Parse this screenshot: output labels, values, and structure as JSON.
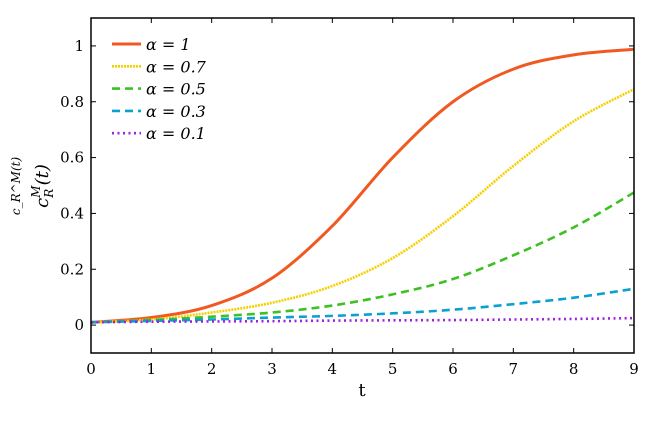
{
  "chart_data": {
    "type": "line",
    "xlabel": "t",
    "ylabel": "c_R^M(t)",
    "ylabel_parts": {
      "base": "c",
      "sub": "R",
      "sup": "M",
      "arg": "(t)"
    },
    "xlim": [
      0,
      9
    ],
    "ylim": [
      -0.1,
      1.1
    ],
    "xticks": [
      "0",
      "1",
      "2",
      "3",
      "4",
      "5",
      "6",
      "7",
      "8",
      "9"
    ],
    "yticks": [
      "0",
      "0.2",
      "0.4",
      "0.6",
      "0.8",
      "1"
    ],
    "grid": false,
    "legend_position": "top-left",
    "x": [
      0,
      1,
      2,
      3,
      4,
      5,
      6,
      7,
      8,
      9
    ],
    "series": [
      {
        "name": "α = 1",
        "color": "#f05a22",
        "style": "solid",
        "values": [
          0.01,
          0.027,
          0.07,
          0.168,
          0.355,
          0.6,
          0.8,
          0.917,
          0.968,
          0.988
        ]
      },
      {
        "name": "α = 0.7",
        "color": "#f5d000",
        "style": "dotted-dense",
        "values": [
          0.01,
          0.02,
          0.045,
          0.08,
          0.14,
          0.24,
          0.39,
          0.57,
          0.73,
          0.845
        ]
      },
      {
        "name": "α = 0.5",
        "color": "#3cc022",
        "style": "dashed",
        "values": [
          0.01,
          0.018,
          0.03,
          0.045,
          0.07,
          0.11,
          0.165,
          0.25,
          0.35,
          0.475
        ]
      },
      {
        "name": "α = 0.3",
        "color": "#0aa0d0",
        "style": "dashed",
        "values": [
          0.01,
          0.015,
          0.02,
          0.027,
          0.033,
          0.042,
          0.055,
          0.075,
          0.098,
          0.13
        ]
      },
      {
        "name": "α = 0.1",
        "color": "#a020e0",
        "style": "dotted",
        "values": [
          0.01,
          0.012,
          0.013,
          0.014,
          0.016,
          0.017,
          0.018,
          0.02,
          0.022,
          0.025
        ]
      }
    ]
  }
}
